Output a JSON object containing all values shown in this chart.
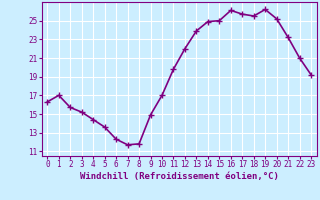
{
  "x": [
    0,
    1,
    2,
    3,
    4,
    5,
    6,
    7,
    8,
    9,
    10,
    11,
    12,
    13,
    14,
    15,
    16,
    17,
    18,
    19,
    20,
    21,
    22,
    23
  ],
  "y": [
    16.3,
    17.0,
    15.7,
    15.2,
    14.4,
    13.6,
    12.3,
    11.7,
    11.8,
    14.9,
    17.0,
    19.8,
    22.0,
    23.9,
    24.9,
    25.0,
    26.1,
    25.7,
    25.5,
    26.2,
    25.2,
    23.2,
    21.0,
    19.2
  ],
  "x_ticks": [
    0,
    1,
    2,
    3,
    4,
    5,
    6,
    7,
    8,
    9,
    10,
    11,
    12,
    13,
    14,
    15,
    16,
    17,
    18,
    19,
    20,
    21,
    22,
    23
  ],
  "y_ticks": [
    11,
    13,
    15,
    17,
    19,
    21,
    23,
    25
  ],
  "ylim": [
    10.5,
    27.0
  ],
  "xlim": [
    -0.5,
    23.5
  ],
  "xlabel": "Windchill (Refroidissement éolien,°C)",
  "line_color": "#800080",
  "marker": "+",
  "bg_color": "#cceeff",
  "grid_color": "#ffffff",
  "tick_color": "#800080",
  "label_color": "#800080",
  "tick_fontsize": 5.5,
  "label_fontsize": 6.5,
  "linewidth": 1.2,
  "markersize": 4,
  "markeredgewidth": 1.0
}
